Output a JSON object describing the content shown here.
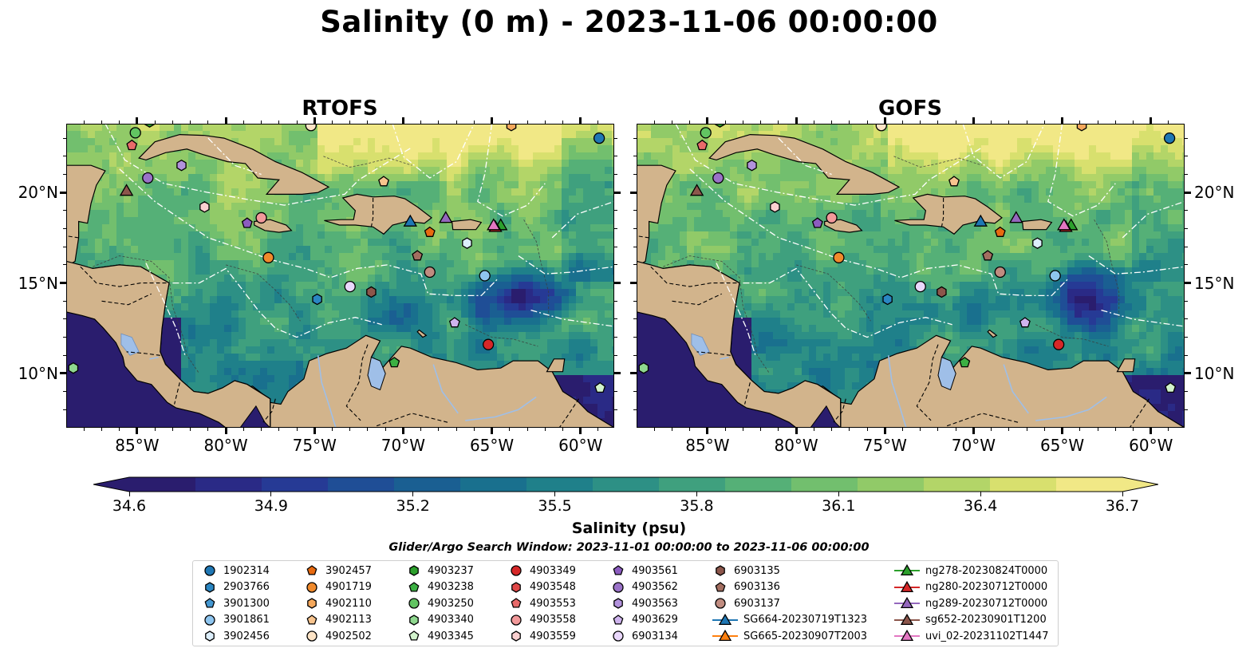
{
  "title": "Salinity (0 m) - 2023-11-06 00:00:00",
  "panels": [
    {
      "id": "rtofs",
      "title": "RTOFS"
    },
    {
      "id": "gofs",
      "title": "GOFS"
    }
  ],
  "lat_labels": [
    "20°N",
    "15°N",
    "10°N"
  ],
  "lon_labels": [
    "85°W",
    "80°W",
    "75°W",
    "70°W",
    "65°W",
    "60°W"
  ],
  "colorbar": {
    "label": "Salinity (psu)",
    "min": 34.6,
    "max": 36.7,
    "ticks": [
      "34.6",
      "34.9",
      "35.2",
      "35.5",
      "35.8",
      "36.1",
      "36.4",
      "36.7"
    ],
    "colors": [
      "#2a1d6e",
      "#2a2a86",
      "#263a95",
      "#1f4e96",
      "#1a5f92",
      "#19708e",
      "#1f808a",
      "#2d9085",
      "#3fa07e",
      "#55b077",
      "#72bf6e",
      "#91ca68",
      "#b3d568",
      "#d8e06e",
      "#f1e886"
    ]
  },
  "search_window": "Glider/Argo Search Window: 2023-11-01 00:00:00 to 2023-11-06 00:00:00",
  "legend": [
    {
      "label": "1902314",
      "marker": "circle",
      "color": "#1f77b4"
    },
    {
      "label": "2903766",
      "marker": "hexagon",
      "color": "#2a86c2"
    },
    {
      "label": "3901300",
      "marker": "pentagon",
      "color": "#4497d1"
    },
    {
      "label": "3901861",
      "marker": "circle",
      "color": "#8ec5ef"
    },
    {
      "label": "3902456",
      "marker": "hexagon",
      "color": "#dceefb"
    },
    {
      "label": "3902457",
      "marker": "pentagon",
      "color": "#e86a10"
    },
    {
      "label": "4901719",
      "marker": "circle",
      "color": "#f08a2c"
    },
    {
      "label": "4902110",
      "marker": "hexagon",
      "color": "#f5a85c"
    },
    {
      "label": "4902113",
      "marker": "pentagon",
      "color": "#f8c48e"
    },
    {
      "label": "4902502",
      "marker": "circle",
      "color": "#fde4c6"
    },
    {
      "label": "4903237",
      "marker": "hexagon",
      "color": "#2ca02c"
    },
    {
      "label": "4903238",
      "marker": "pentagon",
      "color": "#3cb043"
    },
    {
      "label": "4903250",
      "marker": "circle",
      "color": "#62c462"
    },
    {
      "label": "4903340",
      "marker": "hexagon",
      "color": "#8fd88f"
    },
    {
      "label": "4903345",
      "marker": "pentagon",
      "color": "#d2f3cc"
    },
    {
      "label": "4903349",
      "marker": "circle",
      "color": "#d62728"
    },
    {
      "label": "4903548",
      "marker": "hexagon",
      "color": "#e04848"
    },
    {
      "label": "4903553",
      "marker": "pentagon",
      "color": "#e86a6a"
    },
    {
      "label": "4903558",
      "marker": "circle",
      "color": "#f2999a"
    },
    {
      "label": "4903559",
      "marker": "hexagon",
      "color": "#fbd0d0"
    },
    {
      "label": "4903561",
      "marker": "pentagon",
      "color": "#8c5cc0"
    },
    {
      "label": "4903562",
      "marker": "circle",
      "color": "#9a72c8"
    },
    {
      "label": "4903563",
      "marker": "hexagon",
      "color": "#b292dc"
    },
    {
      "label": "4903629",
      "marker": "pentagon",
      "color": "#cfb4ee"
    },
    {
      "label": "6903134",
      "marker": "circle",
      "color": "#ead8fc"
    },
    {
      "label": "6903135",
      "marker": "hexagon",
      "color": "#8c564b"
    },
    {
      "label": "6903136",
      "marker": "pentagon",
      "color": "#a36e60"
    },
    {
      "label": "6903137",
      "marker": "circle",
      "color": "#c08c80"
    },
    {
      "label": "SG664-20230719T1323",
      "marker": "triangle-line",
      "color": "#1f77b4"
    },
    {
      "label": "SG665-20230907T2003",
      "marker": "triangle-line",
      "color": "#ff7f0e"
    },
    {
      "label": "ng278-20230824T0000",
      "marker": "triangle-line",
      "color": "#2ca02c"
    },
    {
      "label": "ng280-20230712T0000",
      "marker": "triangle-line",
      "color": "#d62728"
    },
    {
      "label": "ng289-20230712T0000",
      "marker": "triangle-line",
      "color": "#9467bd"
    },
    {
      "label": "sg652-20230901T1200",
      "marker": "triangle-line",
      "color": "#8c564b"
    },
    {
      "label": "uvi_02-20231102T1447",
      "marker": "triangle-line",
      "color": "#e377c2"
    }
  ],
  "land_color": "#d2b48c",
  "lake_color": "#9fbfe8"
}
